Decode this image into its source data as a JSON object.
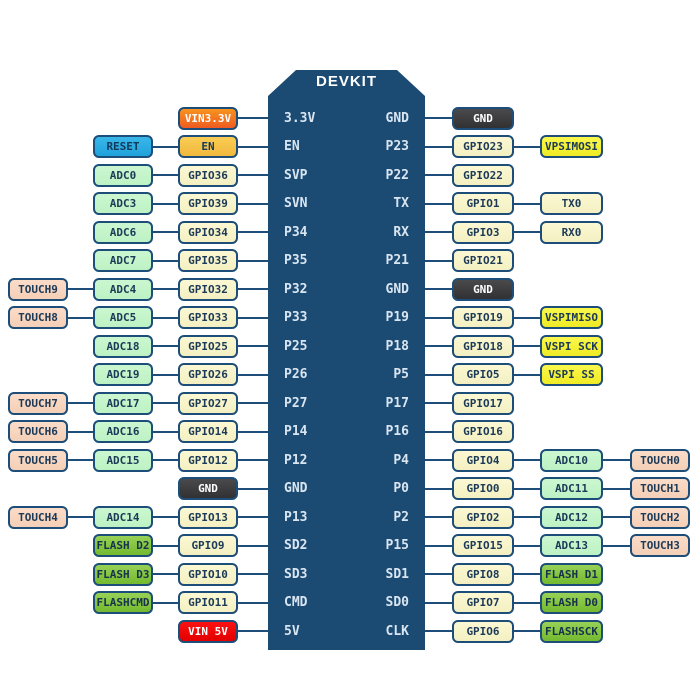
{
  "board": {
    "title": "DEVKIT"
  },
  "palette": {
    "board_bg": "#1B4A73",
    "box_border": "#1D4E79",
    "wire": "#1D4E79",
    "pin_text": "#D9E6F2",
    "types": {
      "gpio": {
        "bg": "#FBF8D3",
        "bg2": "#F4F0C2",
        "fg": "#1C3A57"
      },
      "adc": {
        "bg": "#CBF7D0",
        "bg2": "#BDF2C4",
        "fg": "#1C3A57"
      },
      "touch": {
        "bg": "#FBDCC8",
        "bg2": "#F5CFB7",
        "fg": "#1C3A57"
      },
      "yellow": {
        "bg": "#FAF84C",
        "bg2": "#EFEB25",
        "fg": "#1C3A57"
      },
      "green": {
        "bg": "#97D156",
        "bg2": "#74B92F",
        "fg": "#16324A"
      },
      "gnd": {
        "bg": "#4A4A4C",
        "bg2": "#313133",
        "fg": "#FFFFFF"
      },
      "red": {
        "bg": "#FB1212",
        "bg2": "#E30000",
        "fg": "#FFFFFF"
      },
      "blue": {
        "bg": "#3AB7E9",
        "bg2": "#1FA2DB",
        "fg": "#123A5C"
      },
      "amber": {
        "bg": "#FACD55",
        "bg2": "#F0B83C",
        "fg": "#123A5C"
      },
      "orange": {
        "bg": "#F7941E",
        "bg2": "#EF5A21",
        "fg": "#FFFFFF"
      }
    }
  },
  "rows": [
    {
      "pin_left": "3.3V",
      "pin_right": "GND",
      "left": [
        {
          "label": "VIN3.3V",
          "type": "orange",
          "col": "c3"
        }
      ],
      "right": [
        {
          "label": "GND",
          "type": "gnd",
          "col": "r1"
        }
      ]
    },
    {
      "pin_left": "EN",
      "pin_right": "P23",
      "left": [
        {
          "label": "RESET",
          "type": "blue",
          "col": "c2"
        },
        {
          "label": "EN",
          "type": "amber",
          "col": "c3"
        }
      ],
      "right": [
        {
          "label": "GPIO23",
          "type": "gpio",
          "col": "r1"
        },
        {
          "label": "VPSIMOSI",
          "type": "yellow",
          "col": "r2"
        }
      ]
    },
    {
      "pin_left": "SVP",
      "pin_right": "P22",
      "left": [
        {
          "label": "ADC0",
          "type": "adc",
          "col": "c2"
        },
        {
          "label": "GPIO36",
          "type": "gpio",
          "col": "c3"
        }
      ],
      "right": [
        {
          "label": "GPIO22",
          "type": "gpio",
          "col": "r1"
        }
      ]
    },
    {
      "pin_left": "SVN",
      "pin_right": "TX",
      "left": [
        {
          "label": "ADC3",
          "type": "adc",
          "col": "c2"
        },
        {
          "label": "GPIO39",
          "type": "gpio",
          "col": "c3"
        }
      ],
      "right": [
        {
          "label": "GPIO1",
          "type": "gpio",
          "col": "r1"
        },
        {
          "label": "TX0",
          "type": "gpio",
          "col": "r2"
        }
      ]
    },
    {
      "pin_left": "P34",
      "pin_right": "RX",
      "left": [
        {
          "label": "ADC6",
          "type": "adc",
          "col": "c2"
        },
        {
          "label": "GPIO34",
          "type": "gpio",
          "col": "c3"
        }
      ],
      "right": [
        {
          "label": "GPIO3",
          "type": "gpio",
          "col": "r1"
        },
        {
          "label": "RX0",
          "type": "gpio",
          "col": "r2"
        }
      ]
    },
    {
      "pin_left": "P35",
      "pin_right": "P21",
      "left": [
        {
          "label": "ADC7",
          "type": "adc",
          "col": "c2"
        },
        {
          "label": "GPIO35",
          "type": "gpio",
          "col": "c3"
        }
      ],
      "right": [
        {
          "label": "GPIO21",
          "type": "gpio",
          "col": "r1"
        }
      ]
    },
    {
      "pin_left": "P32",
      "pin_right": "GND",
      "left": [
        {
          "label": "TOUCH9",
          "type": "touch",
          "col": "c1"
        },
        {
          "label": "ADC4",
          "type": "adc",
          "col": "c2"
        },
        {
          "label": "GPIO32",
          "type": "gpio",
          "col": "c3"
        }
      ],
      "right": [
        {
          "label": "GND",
          "type": "gnd",
          "col": "r1"
        }
      ]
    },
    {
      "pin_left": "P33",
      "pin_right": "P19",
      "left": [
        {
          "label": "TOUCH8",
          "type": "touch",
          "col": "c1"
        },
        {
          "label": "ADC5",
          "type": "adc",
          "col": "c2"
        },
        {
          "label": "GPIO33",
          "type": "gpio",
          "col": "c3"
        }
      ],
      "right": [
        {
          "label": "GPIO19",
          "type": "gpio",
          "col": "r1"
        },
        {
          "label": "VSPIMISO",
          "type": "yellow",
          "col": "r2"
        }
      ]
    },
    {
      "pin_left": "P25",
      "pin_right": "P18",
      "left": [
        {
          "label": "ADC18",
          "type": "adc",
          "col": "c2"
        },
        {
          "label": "GPIO25",
          "type": "gpio",
          "col": "c3"
        }
      ],
      "right": [
        {
          "label": "GPIO18",
          "type": "gpio",
          "col": "r1"
        },
        {
          "label": "VSPI SCK",
          "type": "yellow",
          "col": "r2"
        }
      ]
    },
    {
      "pin_left": "P26",
      "pin_right": "P5",
      "left": [
        {
          "label": "ADC19",
          "type": "adc",
          "col": "c2"
        },
        {
          "label": "GPIO26",
          "type": "gpio",
          "col": "c3"
        }
      ],
      "right": [
        {
          "label": "GPIO5",
          "type": "gpio",
          "col": "r1"
        },
        {
          "label": "VSPI SS",
          "type": "yellow",
          "col": "r2"
        }
      ]
    },
    {
      "pin_left": "P27",
      "pin_right": "P17",
      "left": [
        {
          "label": "TOUCH7",
          "type": "touch",
          "col": "c1"
        },
        {
          "label": "ADC17",
          "type": "adc",
          "col": "c2"
        },
        {
          "label": "GPIO27",
          "type": "gpio",
          "col": "c3"
        }
      ],
      "right": [
        {
          "label": "GPIO17",
          "type": "gpio",
          "col": "r1"
        }
      ]
    },
    {
      "pin_left": "P14",
      "pin_right": "P16",
      "left": [
        {
          "label": "TOUCH6",
          "type": "touch",
          "col": "c1"
        },
        {
          "label": "ADC16",
          "type": "adc",
          "col": "c2"
        },
        {
          "label": "GPIO14",
          "type": "gpio",
          "col": "c3"
        }
      ],
      "right": [
        {
          "label": "GPIO16",
          "type": "gpio",
          "col": "r1"
        }
      ]
    },
    {
      "pin_left": "P12",
      "pin_right": "P4",
      "left": [
        {
          "label": "TOUCH5",
          "type": "touch",
          "col": "c1"
        },
        {
          "label": "ADC15",
          "type": "adc",
          "col": "c2"
        },
        {
          "label": "GPIO12",
          "type": "gpio",
          "col": "c3"
        }
      ],
      "right": [
        {
          "label": "GPIO4",
          "type": "gpio",
          "col": "r1"
        },
        {
          "label": "ADC10",
          "type": "adc",
          "col": "r2"
        },
        {
          "label": "TOUCH0",
          "type": "touch",
          "col": "r3"
        }
      ]
    },
    {
      "pin_left": "GND",
      "pin_right": "P0",
      "left": [
        {
          "label": "GND",
          "type": "gnd",
          "col": "c3"
        }
      ],
      "right": [
        {
          "label": "GPIO0",
          "type": "gpio",
          "col": "r1"
        },
        {
          "label": "ADC11",
          "type": "adc",
          "col": "r2"
        },
        {
          "label": "TOUCH1",
          "type": "touch",
          "col": "r3"
        }
      ]
    },
    {
      "pin_left": "P13",
      "pin_right": "P2",
      "left": [
        {
          "label": "TOUCH4",
          "type": "touch",
          "col": "c1"
        },
        {
          "label": "ADC14",
          "type": "adc",
          "col": "c2"
        },
        {
          "label": "GPIO13",
          "type": "gpio",
          "col": "c3"
        }
      ],
      "right": [
        {
          "label": "GPIO2",
          "type": "gpio",
          "col": "r1"
        },
        {
          "label": "ADC12",
          "type": "adc",
          "col": "r2"
        },
        {
          "label": "TOUCH2",
          "type": "touch",
          "col": "r3"
        }
      ]
    },
    {
      "pin_left": "SD2",
      "pin_right": "P15",
      "left": [
        {
          "label": "FLASH D2",
          "type": "green",
          "col": "c2"
        },
        {
          "label": "GPIO9",
          "type": "gpio",
          "col": "c3"
        }
      ],
      "right": [
        {
          "label": "GPIO15",
          "type": "gpio",
          "col": "r1"
        },
        {
          "label": "ADC13",
          "type": "adc",
          "col": "r2"
        },
        {
          "label": "TOUCH3",
          "type": "touch",
          "col": "r3"
        }
      ]
    },
    {
      "pin_left": "SD3",
      "pin_right": "SD1",
      "left": [
        {
          "label": "FLASH D3",
          "type": "green",
          "col": "c2"
        },
        {
          "label": "GPIO10",
          "type": "gpio",
          "col": "c3"
        }
      ],
      "right": [
        {
          "label": "GPIO8",
          "type": "gpio",
          "col": "r1"
        },
        {
          "label": "FLASH D1",
          "type": "green",
          "col": "r2"
        }
      ]
    },
    {
      "pin_left": "CMD",
      "pin_right": "SD0",
      "left": [
        {
          "label": "FLASHCMD",
          "type": "green",
          "col": "c2"
        },
        {
          "label": "GPIO11",
          "type": "gpio",
          "col": "c3"
        }
      ],
      "right": [
        {
          "label": "GPIO7",
          "type": "gpio",
          "col": "r1"
        },
        {
          "label": "FLASH D0",
          "type": "green",
          "col": "r2"
        }
      ]
    },
    {
      "pin_left": "5V",
      "pin_right": "CLK",
      "left": [
        {
          "label": "VIN 5V",
          "type": "red",
          "col": "c3"
        }
      ],
      "right": [
        {
          "label": "GPIO6",
          "type": "gpio",
          "col": "r1"
        },
        {
          "label": "FLASHSCK",
          "type": "green",
          "col": "r2"
        }
      ]
    }
  ]
}
